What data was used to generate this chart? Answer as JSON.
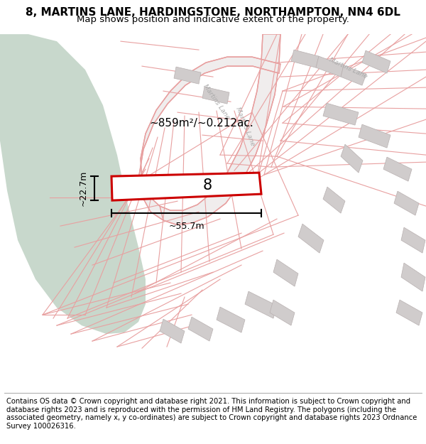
{
  "title_line1": "8, MARTINS LANE, HARDINGSTONE, NORTHAMPTON, NN4 6DL",
  "title_line2": "Map shows position and indicative extent of the property.",
  "footer_text": "Contains OS data © Crown copyright and database right 2021. This information is subject to Crown copyright and database rights 2023 and is reproduced with the permission of HM Land Registry. The polygons (including the associated geometry, namely x, y co-ordinates) are subject to Crown copyright and database rights 2023 Ordnance Survey 100026316.",
  "area_label": "~859m²/~0.212ac.",
  "width_label": "~55.7m",
  "height_label": "~22.7m",
  "plot_number": "8",
  "map_bg": "#f8f6f6",
  "green_color": "#c8d8cc",
  "plot_fill": "#ffffff",
  "plot_edge": "#cc0000",
  "boundary_color": "#e8a0a0",
  "road_fill": "#f0ecec",
  "building_color": "#d0cccc",
  "building_edge": "#b8b0b0",
  "title_fontsize": 11,
  "subtitle_fontsize": 9.5,
  "footer_fontsize": 7.2
}
